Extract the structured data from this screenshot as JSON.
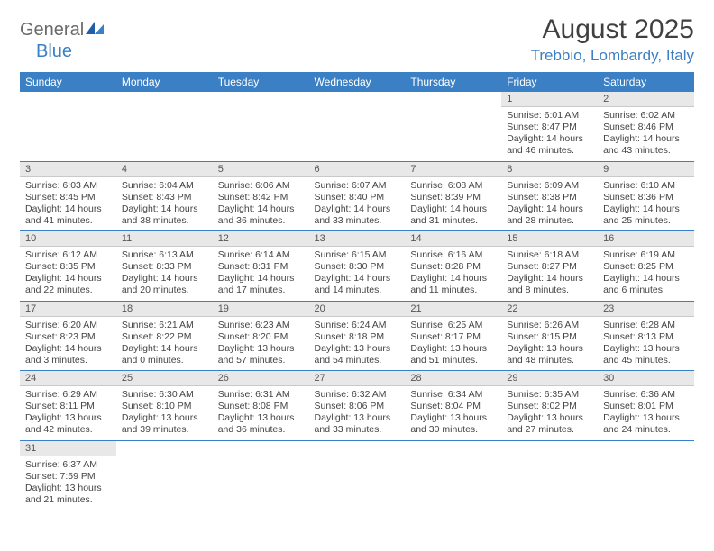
{
  "brand": {
    "general": "General",
    "blue": "Blue"
  },
  "header": {
    "title": "August 2025",
    "location": "Trebbio, Lombardy, Italy"
  },
  "colors": {
    "accent": "#3b7fc4",
    "header_bg": "#3b7fc4",
    "daynum_bg": "#e8e8e8",
    "text": "#333333"
  },
  "weekdays": [
    "Sunday",
    "Monday",
    "Tuesday",
    "Wednesday",
    "Thursday",
    "Friday",
    "Saturday"
  ],
  "weeks": [
    [
      null,
      null,
      null,
      null,
      null,
      {
        "n": "1",
        "sr": "Sunrise: 6:01 AM",
        "ss": "Sunset: 8:47 PM",
        "dl": "Daylight: 14 hours and 46 minutes."
      },
      {
        "n": "2",
        "sr": "Sunrise: 6:02 AM",
        "ss": "Sunset: 8:46 PM",
        "dl": "Daylight: 14 hours and 43 minutes."
      }
    ],
    [
      {
        "n": "3",
        "sr": "Sunrise: 6:03 AM",
        "ss": "Sunset: 8:45 PM",
        "dl": "Daylight: 14 hours and 41 minutes."
      },
      {
        "n": "4",
        "sr": "Sunrise: 6:04 AM",
        "ss": "Sunset: 8:43 PM",
        "dl": "Daylight: 14 hours and 38 minutes."
      },
      {
        "n": "5",
        "sr": "Sunrise: 6:06 AM",
        "ss": "Sunset: 8:42 PM",
        "dl": "Daylight: 14 hours and 36 minutes."
      },
      {
        "n": "6",
        "sr": "Sunrise: 6:07 AM",
        "ss": "Sunset: 8:40 PM",
        "dl": "Daylight: 14 hours and 33 minutes."
      },
      {
        "n": "7",
        "sr": "Sunrise: 6:08 AM",
        "ss": "Sunset: 8:39 PM",
        "dl": "Daylight: 14 hours and 31 minutes."
      },
      {
        "n": "8",
        "sr": "Sunrise: 6:09 AM",
        "ss": "Sunset: 8:38 PM",
        "dl": "Daylight: 14 hours and 28 minutes."
      },
      {
        "n": "9",
        "sr": "Sunrise: 6:10 AM",
        "ss": "Sunset: 8:36 PM",
        "dl": "Daylight: 14 hours and 25 minutes."
      }
    ],
    [
      {
        "n": "10",
        "sr": "Sunrise: 6:12 AM",
        "ss": "Sunset: 8:35 PM",
        "dl": "Daylight: 14 hours and 22 minutes."
      },
      {
        "n": "11",
        "sr": "Sunrise: 6:13 AM",
        "ss": "Sunset: 8:33 PM",
        "dl": "Daylight: 14 hours and 20 minutes."
      },
      {
        "n": "12",
        "sr": "Sunrise: 6:14 AM",
        "ss": "Sunset: 8:31 PM",
        "dl": "Daylight: 14 hours and 17 minutes."
      },
      {
        "n": "13",
        "sr": "Sunrise: 6:15 AM",
        "ss": "Sunset: 8:30 PM",
        "dl": "Daylight: 14 hours and 14 minutes."
      },
      {
        "n": "14",
        "sr": "Sunrise: 6:16 AM",
        "ss": "Sunset: 8:28 PM",
        "dl": "Daylight: 14 hours and 11 minutes."
      },
      {
        "n": "15",
        "sr": "Sunrise: 6:18 AM",
        "ss": "Sunset: 8:27 PM",
        "dl": "Daylight: 14 hours and 8 minutes."
      },
      {
        "n": "16",
        "sr": "Sunrise: 6:19 AM",
        "ss": "Sunset: 8:25 PM",
        "dl": "Daylight: 14 hours and 6 minutes."
      }
    ],
    [
      {
        "n": "17",
        "sr": "Sunrise: 6:20 AM",
        "ss": "Sunset: 8:23 PM",
        "dl": "Daylight: 14 hours and 3 minutes."
      },
      {
        "n": "18",
        "sr": "Sunrise: 6:21 AM",
        "ss": "Sunset: 8:22 PM",
        "dl": "Daylight: 14 hours and 0 minutes."
      },
      {
        "n": "19",
        "sr": "Sunrise: 6:23 AM",
        "ss": "Sunset: 8:20 PM",
        "dl": "Daylight: 13 hours and 57 minutes."
      },
      {
        "n": "20",
        "sr": "Sunrise: 6:24 AM",
        "ss": "Sunset: 8:18 PM",
        "dl": "Daylight: 13 hours and 54 minutes."
      },
      {
        "n": "21",
        "sr": "Sunrise: 6:25 AM",
        "ss": "Sunset: 8:17 PM",
        "dl": "Daylight: 13 hours and 51 minutes."
      },
      {
        "n": "22",
        "sr": "Sunrise: 6:26 AM",
        "ss": "Sunset: 8:15 PM",
        "dl": "Daylight: 13 hours and 48 minutes."
      },
      {
        "n": "23",
        "sr": "Sunrise: 6:28 AM",
        "ss": "Sunset: 8:13 PM",
        "dl": "Daylight: 13 hours and 45 minutes."
      }
    ],
    [
      {
        "n": "24",
        "sr": "Sunrise: 6:29 AM",
        "ss": "Sunset: 8:11 PM",
        "dl": "Daylight: 13 hours and 42 minutes."
      },
      {
        "n": "25",
        "sr": "Sunrise: 6:30 AM",
        "ss": "Sunset: 8:10 PM",
        "dl": "Daylight: 13 hours and 39 minutes."
      },
      {
        "n": "26",
        "sr": "Sunrise: 6:31 AM",
        "ss": "Sunset: 8:08 PM",
        "dl": "Daylight: 13 hours and 36 minutes."
      },
      {
        "n": "27",
        "sr": "Sunrise: 6:32 AM",
        "ss": "Sunset: 8:06 PM",
        "dl": "Daylight: 13 hours and 33 minutes."
      },
      {
        "n": "28",
        "sr": "Sunrise: 6:34 AM",
        "ss": "Sunset: 8:04 PM",
        "dl": "Daylight: 13 hours and 30 minutes."
      },
      {
        "n": "29",
        "sr": "Sunrise: 6:35 AM",
        "ss": "Sunset: 8:02 PM",
        "dl": "Daylight: 13 hours and 27 minutes."
      },
      {
        "n": "30",
        "sr": "Sunrise: 6:36 AM",
        "ss": "Sunset: 8:01 PM",
        "dl": "Daylight: 13 hours and 24 minutes."
      }
    ],
    [
      {
        "n": "31",
        "sr": "Sunrise: 6:37 AM",
        "ss": "Sunset: 7:59 PM",
        "dl": "Daylight: 13 hours and 21 minutes."
      },
      null,
      null,
      null,
      null,
      null,
      null
    ]
  ]
}
